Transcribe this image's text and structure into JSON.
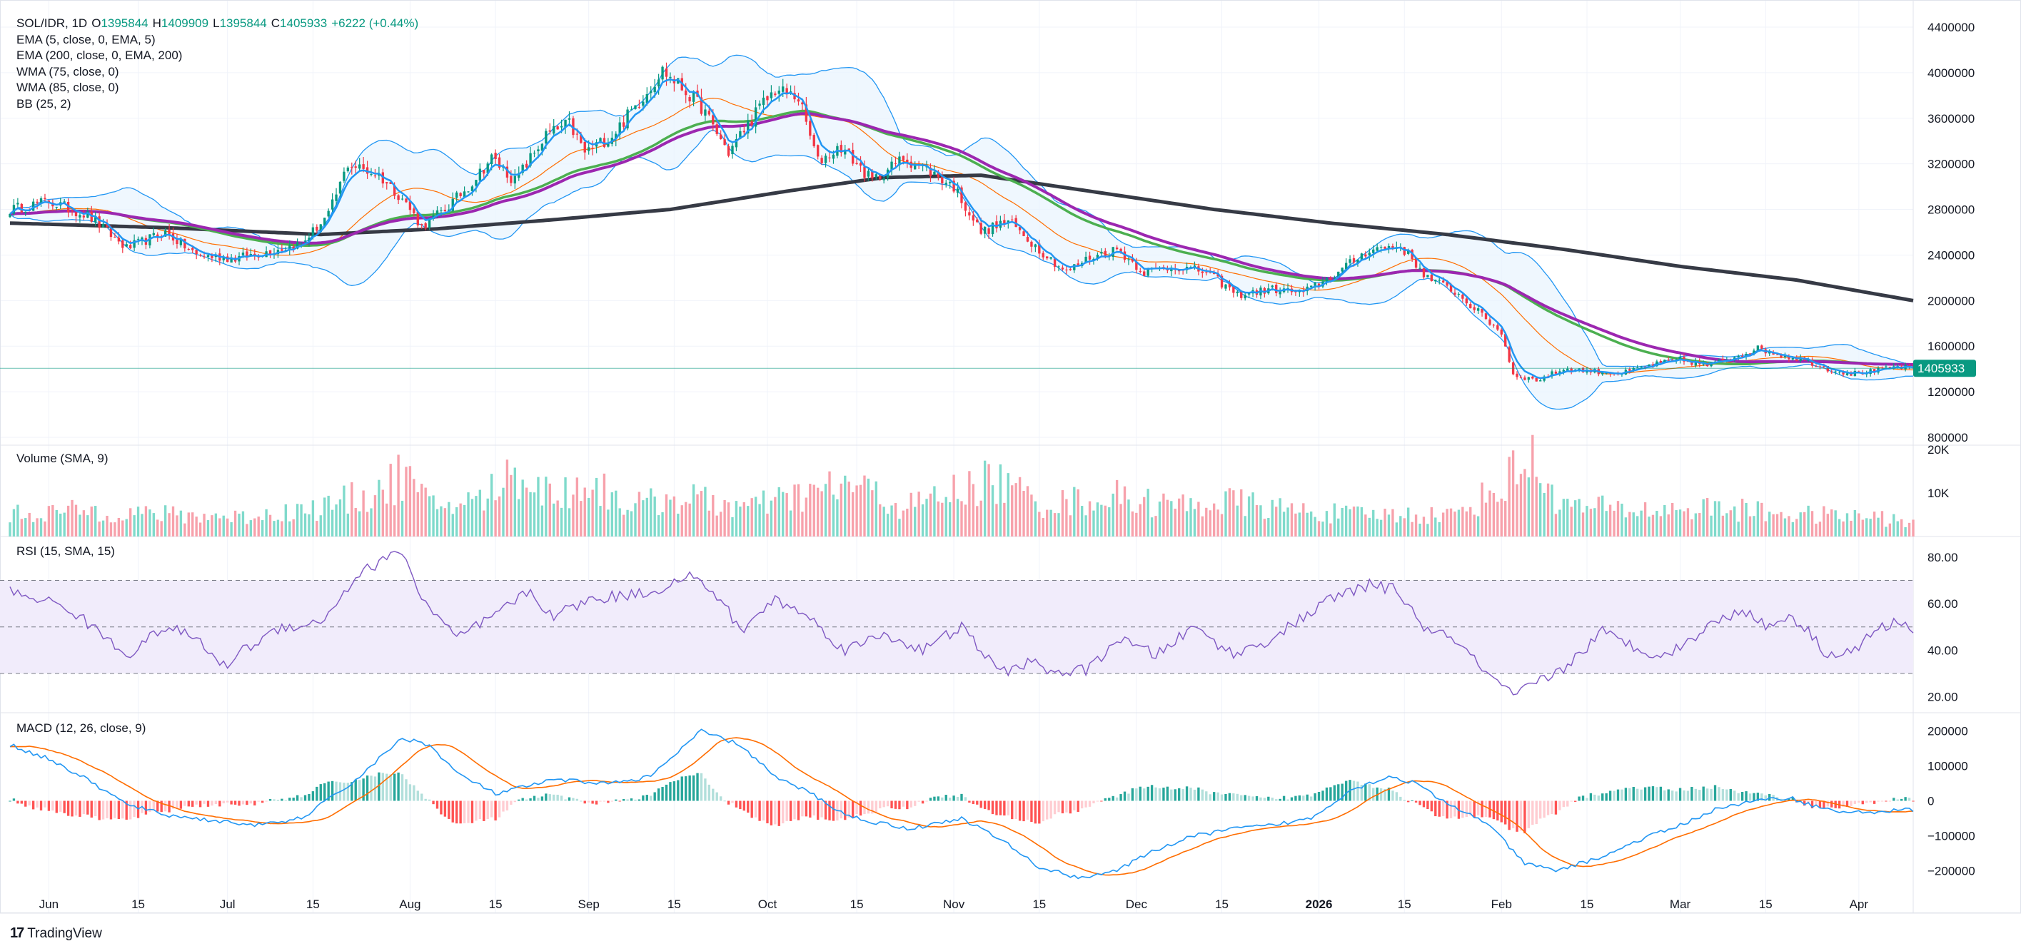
{
  "header": {
    "symbol": "SOL/IDR, 1D",
    "open_label": "O",
    "open": "1395844",
    "high_label": "H",
    "high": "1409909",
    "low_label": "L",
    "low": "1395844",
    "close_label": "C",
    "close": "1405933",
    "change": "+6222 (+0.44%)"
  },
  "indicators": [
    "EMA (5, close, 0, EMA, 5)",
    "EMA (200, close, 0, EMA, 200)",
    "WMA (75, close, 0)",
    "WMA (85, close, 0)",
    "BB (25, 2)"
  ],
  "panes": {
    "volume_title": "Volume (SMA, 9)",
    "rsi_title": "RSI (15, SMA, 15)",
    "macd_title": "MACD (12, 26, close, 9)"
  },
  "brand": {
    "name": "TradingView"
  },
  "colors": {
    "up": "#089981",
    "down": "#f23645",
    "vol_up": "#7fdacb",
    "vol_down": "#f7a1ab",
    "ema5": "#2196f3",
    "ema200": "#363a45",
    "wma75": "#4caf50",
    "wma85": "#9c27b0",
    "bb_line": "#2196f3",
    "bb_fill": "#eaf4fd",
    "rsi": "#7e57c2",
    "rsi_band": "#f1ecfb",
    "macd": "#2196f3",
    "signal": "#ff6d00",
    "hist_up_strong": "#26a69a",
    "hist_up_weak": "#b2dfdb",
    "hist_down_strong": "#ff5252",
    "hist_down_weak": "#ffcdd2",
    "last_price_bg": "#089981"
  },
  "chart_data": {
    "type": "candlestick",
    "x_ticks": [
      "Jun",
      "15",
      "Jul",
      "15",
      "Aug",
      "15",
      "Sep",
      "15",
      "Oct",
      "15",
      "Nov",
      "15",
      "Dec",
      "15",
      "2026",
      "15",
      "Feb",
      "15",
      "Mar",
      "15",
      "Apr"
    ],
    "price_axis": {
      "ticks": [
        4400000,
        4000000,
        3600000,
        3200000,
        2800000,
        2400000,
        2000000,
        1600000,
        1200000,
        800000
      ],
      "ylim": [
        800000,
        4400000
      ],
      "last_price": 1405933
    },
    "volume_axis": {
      "ticks": [
        "20K",
        "10K"
      ],
      "ylim": [
        0,
        20000
      ]
    },
    "rsi_axis": {
      "ticks": [
        "80.00",
        "60.00",
        "40.00",
        "20.00"
      ],
      "ylim": [
        15,
        87
      ],
      "upper_band": 70,
      "middle": 50,
      "lower_band": 30
    },
    "macd_axis": {
      "ticks": [
        200000,
        100000,
        0,
        -100000,
        -200000
      ],
      "tick_labels": [
        "200000",
        "100000",
        "0",
        "−100000",
        "−200000"
      ],
      "ylim": [
        -240000,
        240000
      ]
    },
    "ohlc_keypoints": [
      [
        0,
        2800000
      ],
      [
        10,
        2870000
      ],
      [
        20,
        2750000
      ],
      [
        30,
        2460000
      ],
      [
        40,
        2600000
      ],
      [
        48,
        2400000
      ],
      [
        58,
        2370000
      ],
      [
        65,
        2420000
      ],
      [
        75,
        2500000
      ],
      [
        82,
        2750000
      ],
      [
        87,
        3200000
      ],
      [
        95,
        3100000
      ],
      [
        101,
        2900000
      ],
      [
        106,
        2650000
      ],
      [
        112,
        2800000
      ],
      [
        118,
        3000000
      ],
      [
        124,
        3250000
      ],
      [
        130,
        3050000
      ],
      [
        138,
        3450000
      ],
      [
        144,
        3550000
      ],
      [
        148,
        3300000
      ],
      [
        155,
        3450000
      ],
      [
        162,
        3750000
      ],
      [
        168,
        4020000
      ],
      [
        172,
        3900000
      ],
      [
        178,
        3700000
      ],
      [
        185,
        3300000
      ],
      [
        192,
        3650000
      ],
      [
        197,
        3850000
      ],
      [
        203,
        3780000
      ],
      [
        208,
        3220000
      ],
      [
        214,
        3350000
      ],
      [
        222,
        3050000
      ],
      [
        230,
        3250000
      ],
      [
        236,
        3150000
      ],
      [
        243,
        3000000
      ],
      [
        250,
        2600000
      ],
      [
        257,
        2700000
      ],
      [
        265,
        2450000
      ],
      [
        272,
        2250000
      ],
      [
        278,
        2380000
      ],
      [
        285,
        2450000
      ],
      [
        292,
        2250000
      ],
      [
        300,
        2300000
      ],
      [
        308,
        2250000
      ],
      [
        316,
        2050000
      ],
      [
        325,
        2100000
      ],
      [
        333,
        2070000
      ],
      [
        342,
        2250000
      ],
      [
        350,
        2450000
      ],
      [
        358,
        2480000
      ],
      [
        365,
        2200000
      ],
      [
        372,
        2080000
      ],
      [
        378,
        1900000
      ],
      [
        384,
        1720000
      ],
      [
        387,
        1350000
      ],
      [
        393,
        1300000
      ],
      [
        400,
        1400000
      ],
      [
        408,
        1380000
      ],
      [
        415,
        1360000
      ],
      [
        423,
        1440000
      ],
      [
        430,
        1480000
      ],
      [
        437,
        1430000
      ],
      [
        444,
        1510000
      ],
      [
        450,
        1580000
      ],
      [
        456,
        1520000
      ],
      [
        462,
        1480000
      ],
      [
        468,
        1400000
      ],
      [
        474,
        1360000
      ],
      [
        480,
        1380000
      ],
      [
        486,
        1420000
      ],
      [
        490,
        1405933
      ]
    ],
    "ema200_keypoints": [
      [
        0,
        2680000
      ],
      [
        40,
        2640000
      ],
      [
        80,
        2580000
      ],
      [
        110,
        2630000
      ],
      [
        140,
        2710000
      ],
      [
        170,
        2800000
      ],
      [
        200,
        2960000
      ],
      [
        225,
        3080000
      ],
      [
        250,
        3100000
      ],
      [
        280,
        2950000
      ],
      [
        310,
        2800000
      ],
      [
        340,
        2680000
      ],
      [
        370,
        2580000
      ],
      [
        400,
        2450000
      ],
      [
        430,
        2300000
      ],
      [
        460,
        2180000
      ],
      [
        490,
        2000000
      ]
    ],
    "volume_keypoints": [
      [
        0,
        5000
      ],
      [
        20,
        6000
      ],
      [
        40,
        5000
      ],
      [
        60,
        4500
      ],
      [
        80,
        6500
      ],
      [
        97,
        11000
      ],
      [
        101,
        14500
      ],
      [
        108,
        7000
      ],
      [
        120,
        8000
      ],
      [
        131,
        15000
      ],
      [
        140,
        9000
      ],
      [
        149,
        12500
      ],
      [
        160,
        7000
      ],
      [
        173,
        9000
      ],
      [
        190,
        6500
      ],
      [
        202,
        9000
      ],
      [
        217,
        12000
      ],
      [
        230,
        6500
      ],
      [
        253,
        13000
      ],
      [
        266,
        7500
      ],
      [
        285,
        9000
      ],
      [
        300,
        7000
      ],
      [
        314,
        8000
      ],
      [
        330,
        6000
      ],
      [
        345,
        5000
      ],
      [
        360,
        5000
      ],
      [
        372,
        5000
      ],
      [
        385,
        12000
      ],
      [
        390,
        19000
      ],
      [
        400,
        7000
      ],
      [
        420,
        6000
      ],
      [
        440,
        6500
      ],
      [
        460,
        5000
      ],
      [
        480,
        4500
      ],
      [
        490,
        3000
      ]
    ],
    "rsi_keypoints": [
      [
        0,
        65
      ],
      [
        8,
        62
      ],
      [
        15,
        58
      ],
      [
        25,
        45
      ],
      [
        30,
        38
      ],
      [
        40,
        50
      ],
      [
        48,
        45
      ],
      [
        55,
        33
      ],
      [
        60,
        40
      ],
      [
        70,
        50
      ],
      [
        80,
        52
      ],
      [
        90,
        73
      ],
      [
        101,
        83
      ],
      [
        106,
        62
      ],
      [
        115,
        45
      ],
      [
        125,
        55
      ],
      [
        133,
        65
      ],
      [
        140,
        55
      ],
      [
        150,
        62
      ],
      [
        165,
        65
      ],
      [
        175,
        72
      ],
      [
        183,
        62
      ],
      [
        188,
        48
      ],
      [
        197,
        62
      ],
      [
        205,
        55
      ],
      [
        215,
        40
      ],
      [
        225,
        47
      ],
      [
        235,
        40
      ],
      [
        245,
        50
      ],
      [
        255,
        30
      ],
      [
        262,
        35
      ],
      [
        270,
        30
      ],
      [
        278,
        32
      ],
      [
        285,
        45
      ],
      [
        295,
        38
      ],
      [
        305,
        50
      ],
      [
        315,
        38
      ],
      [
        325,
        45
      ],
      [
        340,
        62
      ],
      [
        350,
        68
      ],
      [
        357,
        66
      ],
      [
        365,
        48
      ],
      [
        372,
        45
      ],
      [
        380,
        30
      ],
      [
        387,
        20
      ],
      [
        395,
        28
      ],
      [
        400,
        32
      ],
      [
        410,
        48
      ],
      [
        420,
        40
      ],
      [
        427,
        38
      ],
      [
        437,
        50
      ],
      [
        446,
        58
      ],
      [
        452,
        50
      ],
      [
        458,
        55
      ],
      [
        462,
        50
      ],
      [
        468,
        38
      ],
      [
        475,
        40
      ],
      [
        480,
        48
      ],
      [
        485,
        52
      ],
      [
        490,
        49
      ]
    ],
    "macd_keypoints": [
      [
        0,
        160000
      ],
      [
        10,
        120000
      ],
      [
        20,
        60000
      ],
      [
        30,
        -10000
      ],
      [
        40,
        -40000
      ],
      [
        55,
        -60000
      ],
      [
        65,
        -70000
      ],
      [
        75,
        -50000
      ],
      [
        88,
        50000
      ],
      [
        101,
        180000
      ],
      [
        108,
        160000
      ],
      [
        115,
        80000
      ],
      [
        125,
        20000
      ],
      [
        140,
        60000
      ],
      [
        155,
        50000
      ],
      [
        165,
        70000
      ],
      [
        178,
        200000
      ],
      [
        188,
        160000
      ],
      [
        198,
        60000
      ],
      [
        205,
        30000
      ],
      [
        215,
        -40000
      ],
      [
        222,
        -60000
      ],
      [
        232,
        -80000
      ],
      [
        245,
        -50000
      ],
      [
        255,
        -110000
      ],
      [
        265,
        -190000
      ],
      [
        275,
        -220000
      ],
      [
        285,
        -200000
      ],
      [
        295,
        -140000
      ],
      [
        305,
        -100000
      ],
      [
        315,
        -80000
      ],
      [
        325,
        -70000
      ],
      [
        335,
        -50000
      ],
      [
        345,
        30000
      ],
      [
        355,
        70000
      ],
      [
        362,
        50000
      ],
      [
        370,
        -10000
      ],
      [
        380,
        -60000
      ],
      [
        390,
        -180000
      ],
      [
        398,
        -200000
      ],
      [
        410,
        -160000
      ],
      [
        420,
        -110000
      ],
      [
        430,
        -70000
      ],
      [
        440,
        -20000
      ],
      [
        450,
        0
      ],
      [
        458,
        10000
      ],
      [
        466,
        -20000
      ],
      [
        474,
        -35000
      ],
      [
        482,
        -30000
      ],
      [
        490,
        -25000
      ]
    ]
  }
}
